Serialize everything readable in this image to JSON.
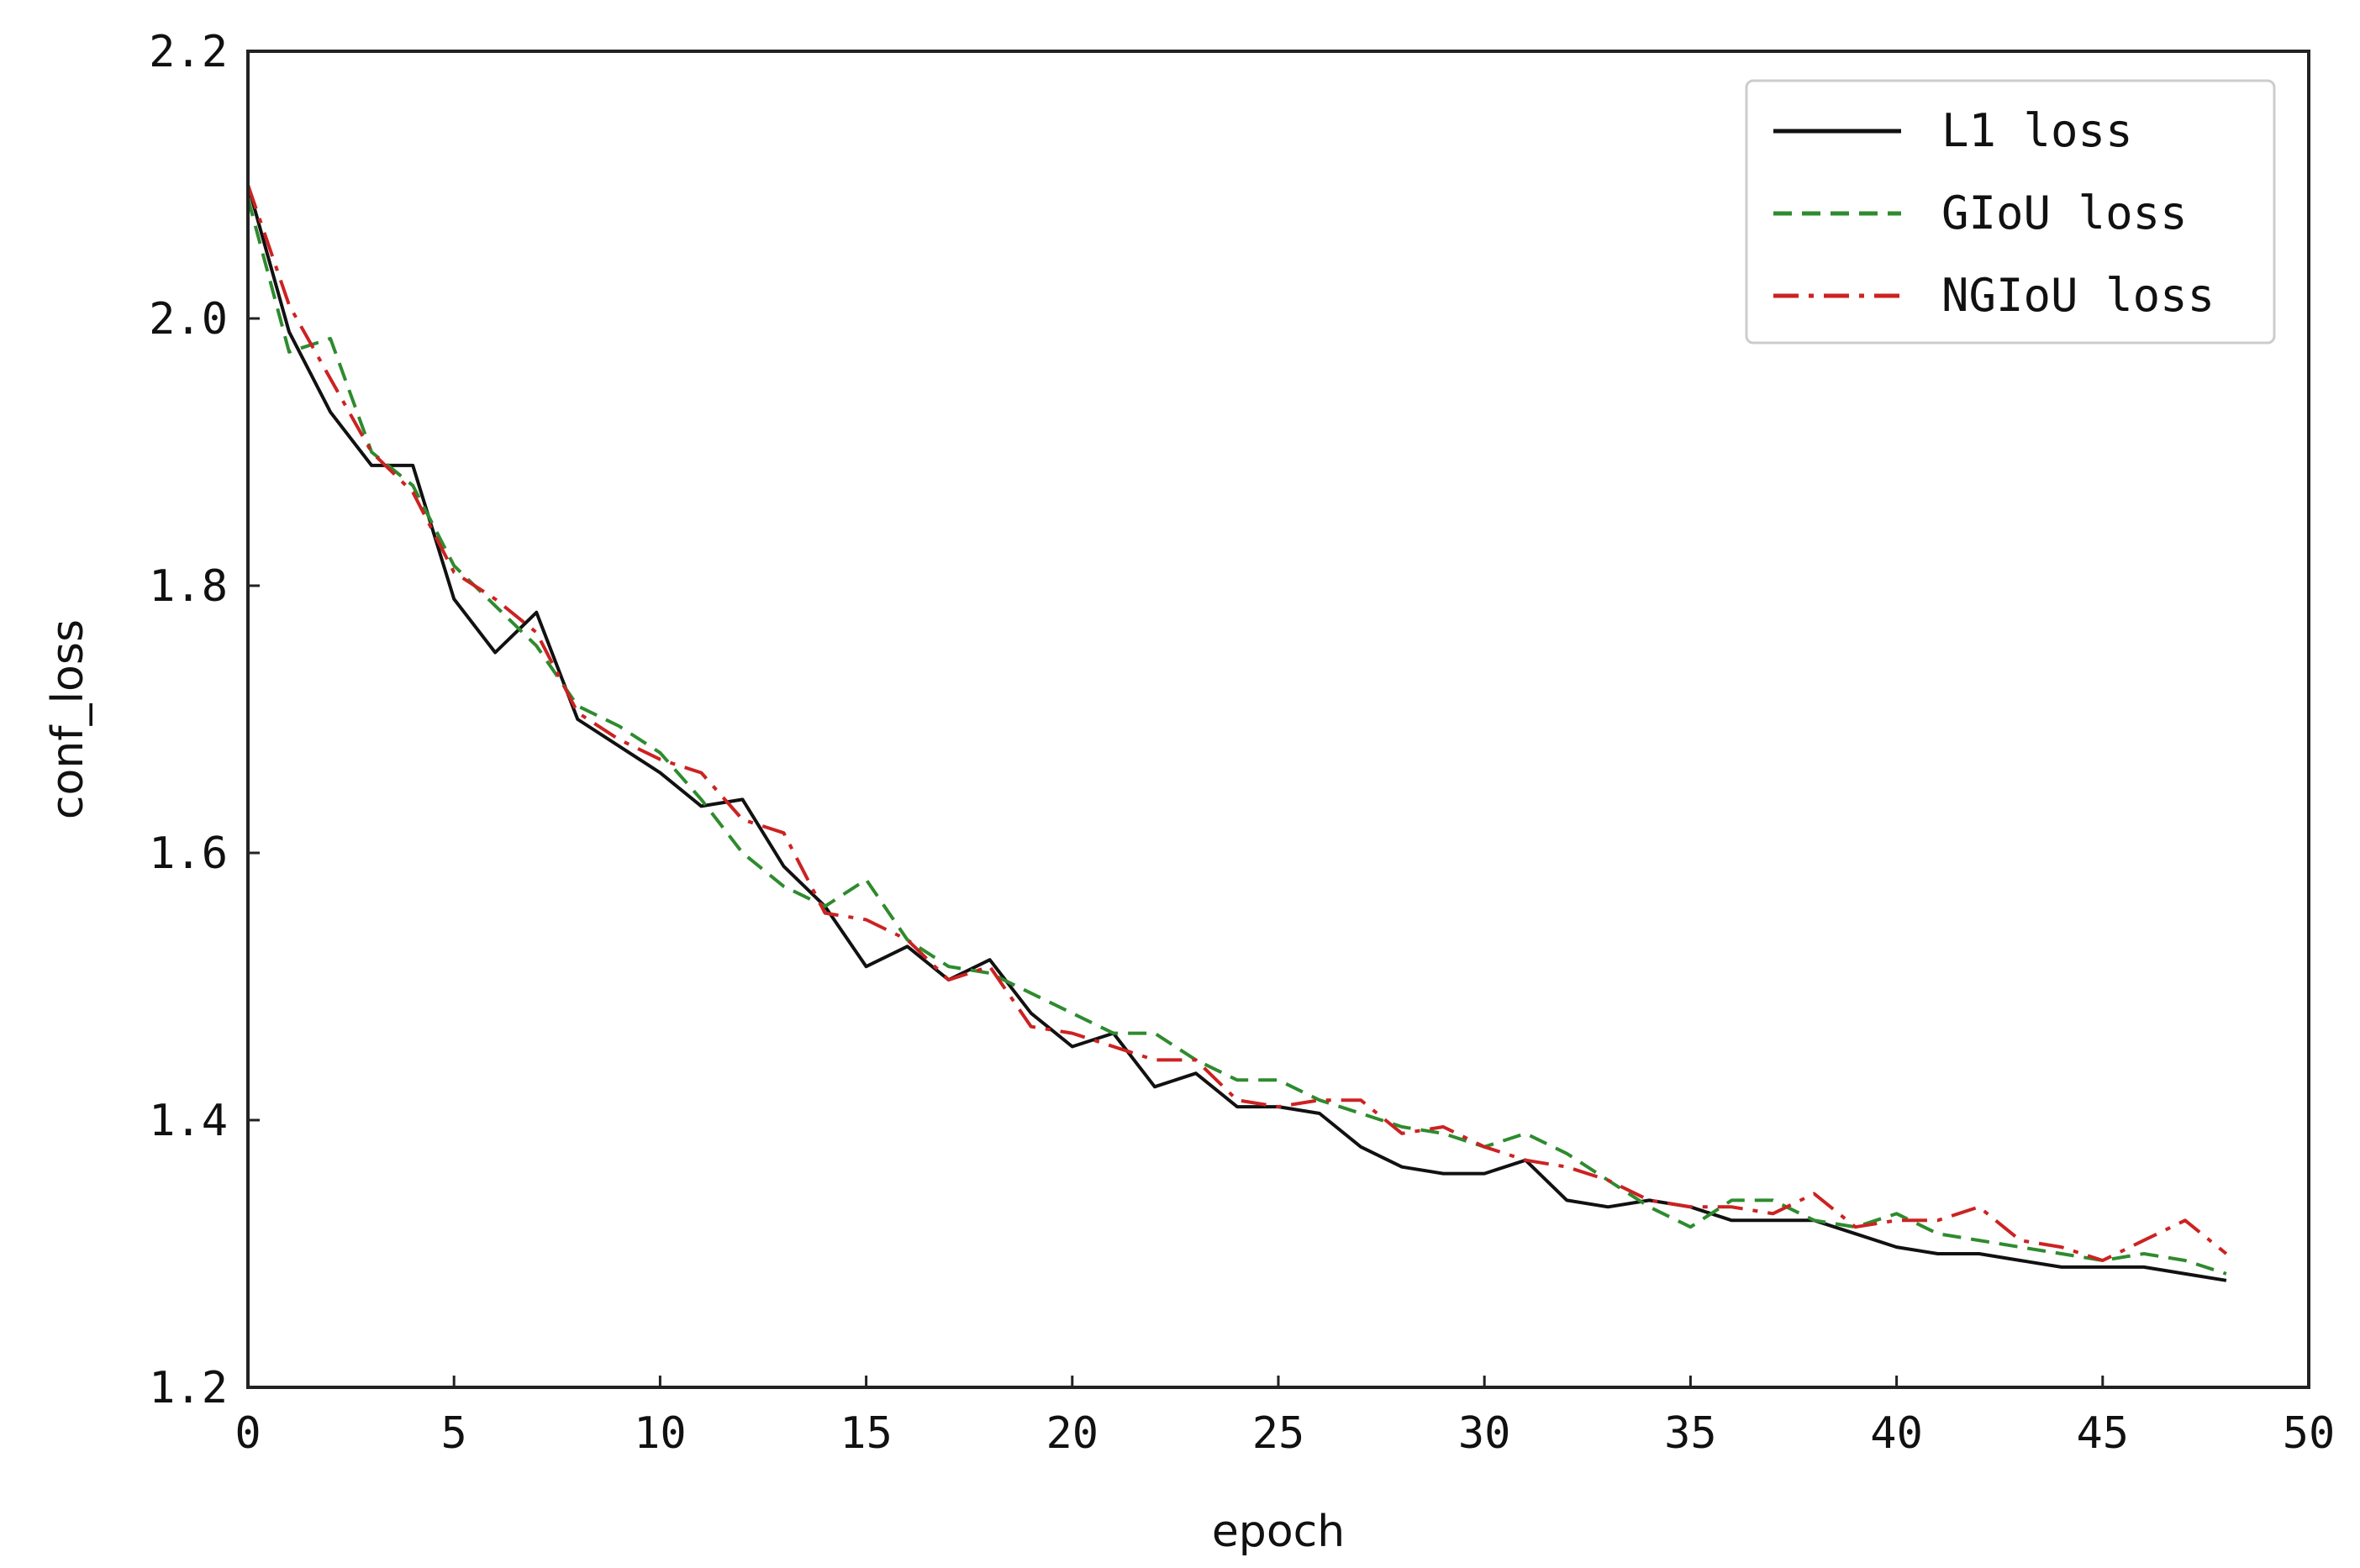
{
  "chart_data": {
    "type": "line",
    "title": "",
    "xlabel": "epoch",
    "ylabel": "conf_loss",
    "xlim": [
      0,
      50
    ],
    "ylim": [
      1.2,
      2.2
    ],
    "x_ticks": [
      0,
      5,
      10,
      15,
      20,
      25,
      30,
      35,
      40,
      45,
      50
    ],
    "y_ticks": [
      1.2,
      1.4,
      1.6,
      1.8,
      2.0,
      2.2
    ],
    "x_tick_labels": [
      "0",
      "5",
      "10",
      "15",
      "20",
      "25",
      "30",
      "35",
      "40",
      "45",
      "50"
    ],
    "y_tick_labels": [
      "1.2",
      "1.4",
      "1.6",
      "1.8",
      "2.0",
      "2.2"
    ],
    "grid": false,
    "legend_position": "top-right",
    "x": [
      0,
      1,
      2,
      3,
      4,
      5,
      6,
      7,
      8,
      9,
      10,
      11,
      12,
      13,
      14,
      15,
      16,
      17,
      18,
      19,
      20,
      21,
      22,
      23,
      24,
      25,
      26,
      27,
      28,
      29,
      30,
      31,
      32,
      33,
      34,
      35,
      36,
      37,
      38,
      39,
      40,
      41,
      42,
      43,
      44,
      45,
      46,
      47,
      48
    ],
    "series": [
      {
        "name": "L1 loss",
        "color": "#111111",
        "dash": "solid",
        "values": [
          2.1,
          1.99,
          1.93,
          1.89,
          1.89,
          1.79,
          1.75,
          1.78,
          1.7,
          1.68,
          1.66,
          1.635,
          1.64,
          1.59,
          1.56,
          1.515,
          1.53,
          1.505,
          1.52,
          1.48,
          1.455,
          1.465,
          1.425,
          1.435,
          1.41,
          1.41,
          1.405,
          1.38,
          1.365,
          1.36,
          1.36,
          1.37,
          1.34,
          1.335,
          1.34,
          1.335,
          1.325,
          1.325,
          1.325,
          1.315,
          1.305,
          1.3,
          1.3,
          1.295,
          1.29,
          1.29,
          1.29,
          1.285,
          1.28
        ]
      },
      {
        "name": "GIoU loss",
        "color": "#2e8b2e",
        "dash": "dashed",
        "values": [
          2.09,
          1.975,
          1.985,
          1.9,
          1.875,
          1.815,
          1.785,
          1.755,
          1.71,
          1.695,
          1.675,
          1.64,
          1.6,
          1.575,
          1.56,
          1.58,
          1.535,
          1.515,
          1.51,
          1.495,
          1.48,
          1.465,
          1.465,
          1.445,
          1.43,
          1.43,
          1.415,
          1.405,
          1.395,
          1.39,
          1.38,
          1.39,
          1.375,
          1.355,
          1.335,
          1.32,
          1.34,
          1.34,
          1.325,
          1.32,
          1.33,
          1.315,
          1.31,
          1.305,
          1.3,
          1.295,
          1.3,
          1.295,
          1.285
        ]
      },
      {
        "name": "NGIoU loss",
        "color": "#cc2222",
        "dash": "dashdot",
        "values": [
          2.1,
          2.01,
          1.955,
          1.9,
          1.87,
          1.81,
          1.79,
          1.765,
          1.705,
          1.685,
          1.67,
          1.66,
          1.625,
          1.615,
          1.555,
          1.55,
          1.535,
          1.505,
          1.515,
          1.47,
          1.465,
          1.455,
          1.445,
          1.445,
          1.415,
          1.41,
          1.415,
          1.415,
          1.39,
          1.395,
          1.38,
          1.37,
          1.365,
          1.355,
          1.34,
          1.335,
          1.335,
          1.33,
          1.345,
          1.32,
          1.325,
          1.325,
          1.335,
          1.31,
          1.305,
          1.295,
          1.31,
          1.325,
          1.3
        ]
      }
    ]
  }
}
